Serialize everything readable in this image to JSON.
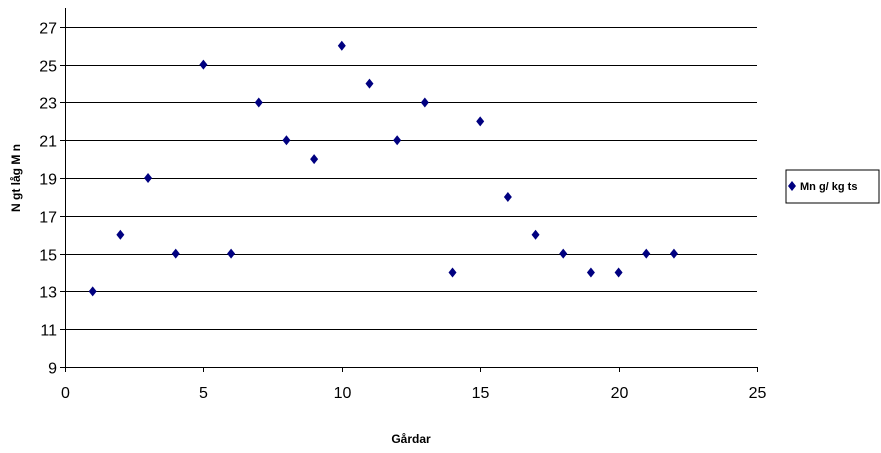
{
  "chart_data": {
    "type": "scatter",
    "title": "",
    "xlabel": "Gårdar",
    "ylabel": "N gt låg M n",
    "xlim": [
      0,
      25
    ],
    "ylim": [
      9,
      28
    ],
    "x_ticks": [
      0,
      5,
      10,
      15,
      20,
      25
    ],
    "y_ticks": [
      9,
      11,
      13,
      15,
      17,
      19,
      21,
      23,
      25,
      27
    ],
    "grid": "horizontal",
    "legend_position": "right",
    "series": [
      {
        "name": "Mn g/ kg ts",
        "color": "#000080",
        "marker": "diamond",
        "x": [
          1,
          2,
          3,
          4,
          5,
          6,
          7,
          8,
          9,
          10,
          11,
          12,
          13,
          14,
          15,
          16,
          17,
          18,
          19,
          20,
          21,
          22
        ],
        "y": [
          13,
          16,
          19,
          15,
          25,
          15,
          23,
          21,
          20,
          26,
          24,
          21,
          23,
          14,
          22,
          18,
          16,
          15,
          14,
          14,
          15,
          15
        ]
      }
    ]
  }
}
